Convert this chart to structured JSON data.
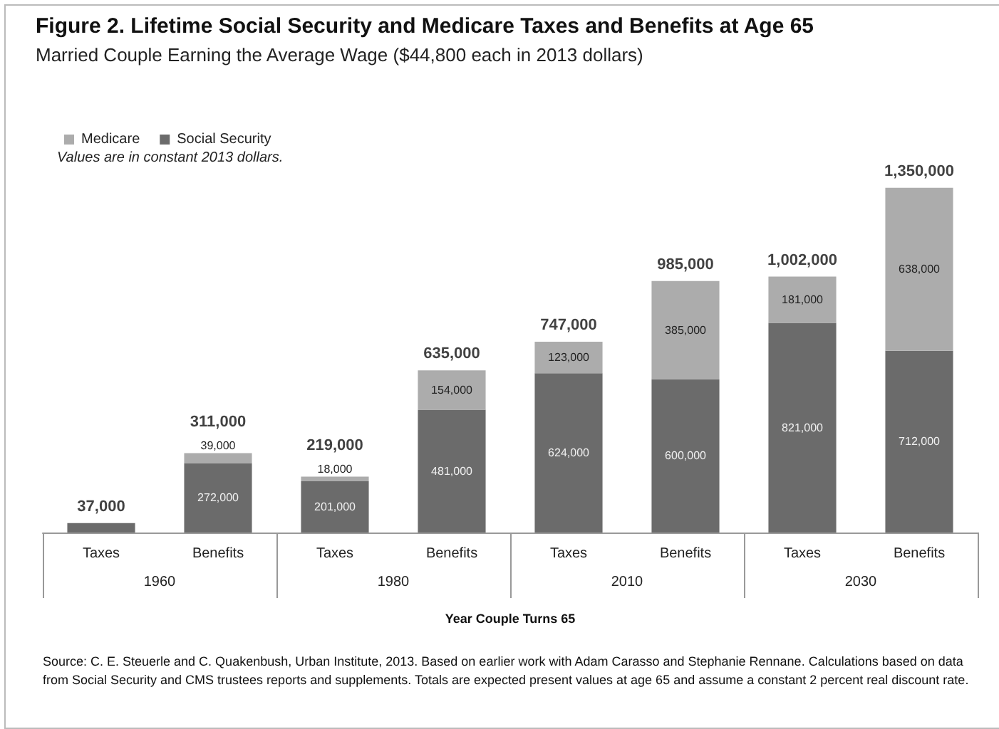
{
  "chart_data": {
    "type": "bar",
    "title": "Figure 2. Lifetime Social Security and Medicare Taxes and Benefits at Age 65",
    "subtitle": "Married Couple Earning the Average Wage ($44,800 each in 2013 dollars)",
    "xlabel": "Year Couple Turns 65",
    "categories": [
      "Taxes",
      "Benefits",
      "Taxes",
      "Benefits",
      "Taxes",
      "Benefits",
      "Taxes",
      "Benefits"
    ],
    "series": [
      {
        "name": "Social Security",
        "color": "#6b6b6b",
        "values": [
          37000,
          272000,
          201000,
          481000,
          624000,
          600000,
          821000,
          712000
        ],
        "value_labels": [
          null,
          "272,000",
          "201,000",
          "481,000",
          "624,000",
          "600,000",
          "821,000",
          "712,000"
        ]
      },
      {
        "name": "Medicare",
        "color": "#acacac",
        "values": [
          null,
          39000,
          18000,
          154000,
          123000,
          385000,
          181000,
          638000
        ],
        "value_labels": [
          null,
          "39,000",
          "18,000",
          "154,000",
          "123,000",
          "385,000",
          "181,000",
          "638,000"
        ]
      }
    ],
    "stacked": true,
    "totals": [
      "37,000",
      "311,000",
      "219,000",
      "635,000",
      "747,000",
      "985,000",
      "1,002,000",
      "1,350,000"
    ],
    "legend": "top left",
    "annotations": [
      "Values are in constant 2013 dollars.",
      "1960",
      "1980",
      "2010",
      "2030",
      "Source: C. E. Steuerle and C. Quakenbush, Urban Institute, 2013. Based on earlier work with Adam Carasso and Stephanie Rennane. Calculations based on data from Social Security and CMS trustees reports and supplements. Totals are expected present values at age 65 and assume a constant 2 percent real discount rate."
    ]
  }
}
